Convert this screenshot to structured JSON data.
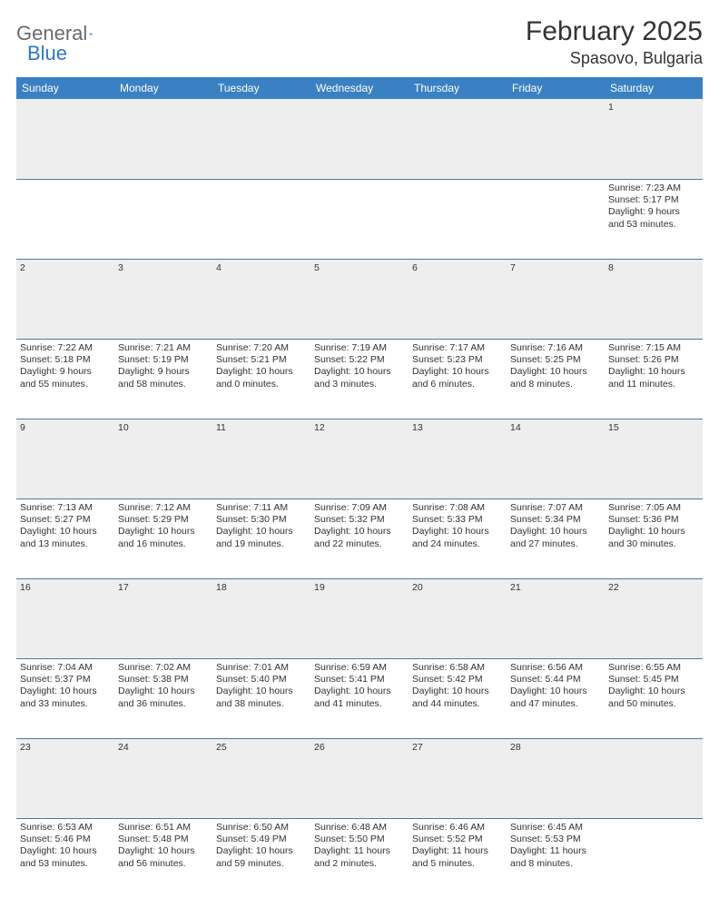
{
  "logo": {
    "text1": "General",
    "text2": "Blue"
  },
  "title": "February 2025",
  "location": "Spasovo, Bulgaria",
  "colors": {
    "header_bg": "#3a81c4",
    "header_text": "#ffffff",
    "daynum_bg": "#eeeeee",
    "border": "#6b90b3",
    "logo_gray": "#6a6a6a",
    "logo_blue": "#2f78c0"
  },
  "weekdays": [
    "Sunday",
    "Monday",
    "Tuesday",
    "Wednesday",
    "Thursday",
    "Friday",
    "Saturday"
  ],
  "weeks": [
    [
      null,
      null,
      null,
      null,
      null,
      null,
      {
        "n": "1",
        "sr": "Sunrise: 7:23 AM",
        "ss": "Sunset: 5:17 PM",
        "d1": "Daylight: 9 hours",
        "d2": "and 53 minutes."
      }
    ],
    [
      {
        "n": "2",
        "sr": "Sunrise: 7:22 AM",
        "ss": "Sunset: 5:18 PM",
        "d1": "Daylight: 9 hours",
        "d2": "and 55 minutes."
      },
      {
        "n": "3",
        "sr": "Sunrise: 7:21 AM",
        "ss": "Sunset: 5:19 PM",
        "d1": "Daylight: 9 hours",
        "d2": "and 58 minutes."
      },
      {
        "n": "4",
        "sr": "Sunrise: 7:20 AM",
        "ss": "Sunset: 5:21 PM",
        "d1": "Daylight: 10 hours",
        "d2": "and 0 minutes."
      },
      {
        "n": "5",
        "sr": "Sunrise: 7:19 AM",
        "ss": "Sunset: 5:22 PM",
        "d1": "Daylight: 10 hours",
        "d2": "and 3 minutes."
      },
      {
        "n": "6",
        "sr": "Sunrise: 7:17 AM",
        "ss": "Sunset: 5:23 PM",
        "d1": "Daylight: 10 hours",
        "d2": "and 6 minutes."
      },
      {
        "n": "7",
        "sr": "Sunrise: 7:16 AM",
        "ss": "Sunset: 5:25 PM",
        "d1": "Daylight: 10 hours",
        "d2": "and 8 minutes."
      },
      {
        "n": "8",
        "sr": "Sunrise: 7:15 AM",
        "ss": "Sunset: 5:26 PM",
        "d1": "Daylight: 10 hours",
        "d2": "and 11 minutes."
      }
    ],
    [
      {
        "n": "9",
        "sr": "Sunrise: 7:13 AM",
        "ss": "Sunset: 5:27 PM",
        "d1": "Daylight: 10 hours",
        "d2": "and 13 minutes."
      },
      {
        "n": "10",
        "sr": "Sunrise: 7:12 AM",
        "ss": "Sunset: 5:29 PM",
        "d1": "Daylight: 10 hours",
        "d2": "and 16 minutes."
      },
      {
        "n": "11",
        "sr": "Sunrise: 7:11 AM",
        "ss": "Sunset: 5:30 PM",
        "d1": "Daylight: 10 hours",
        "d2": "and 19 minutes."
      },
      {
        "n": "12",
        "sr": "Sunrise: 7:09 AM",
        "ss": "Sunset: 5:32 PM",
        "d1": "Daylight: 10 hours",
        "d2": "and 22 minutes."
      },
      {
        "n": "13",
        "sr": "Sunrise: 7:08 AM",
        "ss": "Sunset: 5:33 PM",
        "d1": "Daylight: 10 hours",
        "d2": "and 24 minutes."
      },
      {
        "n": "14",
        "sr": "Sunrise: 7:07 AM",
        "ss": "Sunset: 5:34 PM",
        "d1": "Daylight: 10 hours",
        "d2": "and 27 minutes."
      },
      {
        "n": "15",
        "sr": "Sunrise: 7:05 AM",
        "ss": "Sunset: 5:36 PM",
        "d1": "Daylight: 10 hours",
        "d2": "and 30 minutes."
      }
    ],
    [
      {
        "n": "16",
        "sr": "Sunrise: 7:04 AM",
        "ss": "Sunset: 5:37 PM",
        "d1": "Daylight: 10 hours",
        "d2": "and 33 minutes."
      },
      {
        "n": "17",
        "sr": "Sunrise: 7:02 AM",
        "ss": "Sunset: 5:38 PM",
        "d1": "Daylight: 10 hours",
        "d2": "and 36 minutes."
      },
      {
        "n": "18",
        "sr": "Sunrise: 7:01 AM",
        "ss": "Sunset: 5:40 PM",
        "d1": "Daylight: 10 hours",
        "d2": "and 38 minutes."
      },
      {
        "n": "19",
        "sr": "Sunrise: 6:59 AM",
        "ss": "Sunset: 5:41 PM",
        "d1": "Daylight: 10 hours",
        "d2": "and 41 minutes."
      },
      {
        "n": "20",
        "sr": "Sunrise: 6:58 AM",
        "ss": "Sunset: 5:42 PM",
        "d1": "Daylight: 10 hours",
        "d2": "and 44 minutes."
      },
      {
        "n": "21",
        "sr": "Sunrise: 6:56 AM",
        "ss": "Sunset: 5:44 PM",
        "d1": "Daylight: 10 hours",
        "d2": "and 47 minutes."
      },
      {
        "n": "22",
        "sr": "Sunrise: 6:55 AM",
        "ss": "Sunset: 5:45 PM",
        "d1": "Daylight: 10 hours",
        "d2": "and 50 minutes."
      }
    ],
    [
      {
        "n": "23",
        "sr": "Sunrise: 6:53 AM",
        "ss": "Sunset: 5:46 PM",
        "d1": "Daylight: 10 hours",
        "d2": "and 53 minutes."
      },
      {
        "n": "24",
        "sr": "Sunrise: 6:51 AM",
        "ss": "Sunset: 5:48 PM",
        "d1": "Daylight: 10 hours",
        "d2": "and 56 minutes."
      },
      {
        "n": "25",
        "sr": "Sunrise: 6:50 AM",
        "ss": "Sunset: 5:49 PM",
        "d1": "Daylight: 10 hours",
        "d2": "and 59 minutes."
      },
      {
        "n": "26",
        "sr": "Sunrise: 6:48 AM",
        "ss": "Sunset: 5:50 PM",
        "d1": "Daylight: 11 hours",
        "d2": "and 2 minutes."
      },
      {
        "n": "27",
        "sr": "Sunrise: 6:46 AM",
        "ss": "Sunset: 5:52 PM",
        "d1": "Daylight: 11 hours",
        "d2": "and 5 minutes."
      },
      {
        "n": "28",
        "sr": "Sunrise: 6:45 AM",
        "ss": "Sunset: 5:53 PM",
        "d1": "Daylight: 11 hours",
        "d2": "and 8 minutes."
      },
      null
    ]
  ]
}
